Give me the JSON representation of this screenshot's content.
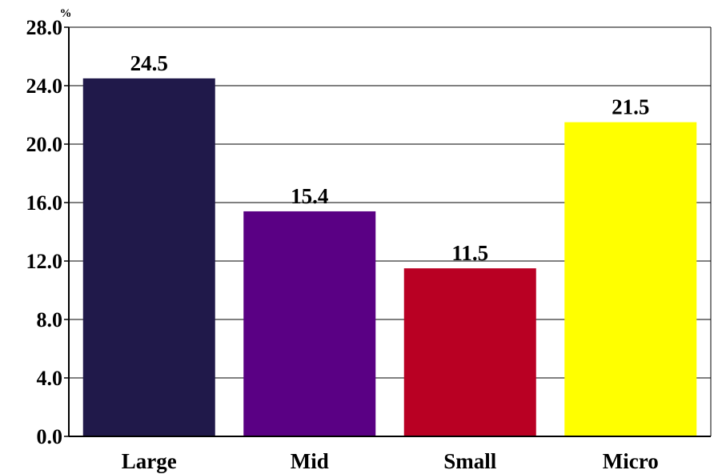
{
  "chart_data": {
    "type": "bar",
    "title": "",
    "xlabel": "",
    "ylabel": "",
    "unit": "%",
    "categories": [
      "Large",
      "Mid",
      "Small",
      "Micro"
    ],
    "values": [
      24.5,
      15.4,
      11.5,
      21.5
    ],
    "value_labels": [
      "24.5",
      "15.4",
      "11.5",
      "21.5"
    ],
    "bar_colors": [
      "#20194a",
      "#5a0084",
      "#b90023",
      "#ffff00"
    ],
    "ylim": [
      0,
      28
    ],
    "yticks": [
      0,
      4,
      8,
      12,
      16,
      20,
      24,
      28
    ],
    "ytick_labels": [
      "0.0",
      "4.0",
      "8.0",
      "12.0",
      "16.0",
      "20.0",
      "24.0",
      "28.0"
    ],
    "grid": "horizontal",
    "legend": "none"
  }
}
